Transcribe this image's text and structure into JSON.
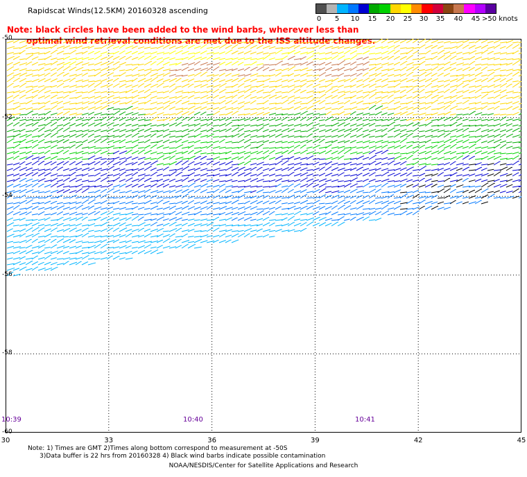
{
  "title": "Rapidscat Winds(12.5KM)  20160328  ascending",
  "note": {
    "line1": "Note: black circles have been added to the wind barbs, wherever less than",
    "line2": "optimal wind retrieval conditions are met due to the ISS altitude changes."
  },
  "legend": {
    "colors": [
      "#505050",
      "#b4b4b4",
      "#00b4ff",
      "#0078ff",
      "#0000d2",
      "#00aa00",
      "#00d200",
      "#ffd700",
      "#ffff00",
      "#ff8c00",
      "#ff0000",
      "#d2003c",
      "#8b4513",
      "#c87850",
      "#ff00ff",
      "#b400ff",
      "#5a00a0"
    ],
    "labels": [
      "0",
      "5",
      "10",
      "15",
      "20",
      "25",
      "30",
      "35",
      "40",
      "45",
      ">50 knots"
    ]
  },
  "map": {
    "lat_labels": [
      "-50",
      "-52",
      "-54",
      "-56",
      "-58",
      "-60"
    ],
    "lon_labels": [
      "30",
      "33",
      "36",
      "39",
      "42",
      "45"
    ],
    "time_labels": [
      "10:39",
      "10:40",
      "10:41"
    ],
    "lat_range": [
      -60,
      -50
    ],
    "lon_range": [
      30,
      45
    ]
  },
  "footnote": {
    "line1": "Note: 1) Times are GMT 2)Times along bottom correspond to measurement at -50S",
    "line2": "      3)Data buffer is 22 hrs from 20160328 4) Black wind barbs indicate possible contamination"
  },
  "credit": "NOAA/NESDIS/Center for Satellite Applications and Research"
}
